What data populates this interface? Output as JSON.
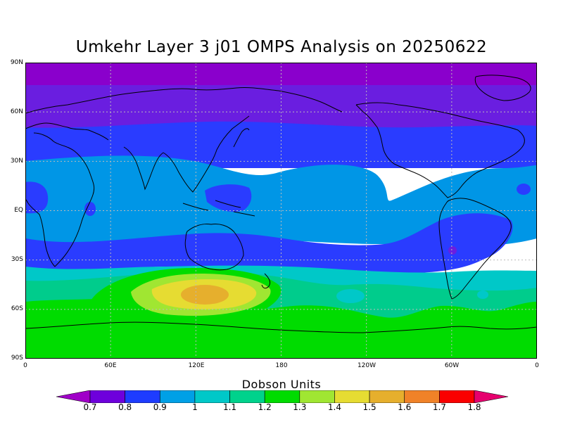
{
  "title": "Umkehr Layer 3 j01 OMPS Analysis on 20250622",
  "map": {
    "lat_ticks": [
      "90N",
      "60N",
      "30N",
      "EQ",
      "30S",
      "60S",
      "90S"
    ],
    "lon_ticks": [
      "0",
      "60E",
      "120E",
      "180",
      "120W",
      "60W",
      "0"
    ],
    "grid": "dotted"
  },
  "colorbar": {
    "title": "Dobson Units",
    "levels": [
      "0.7",
      "0.8",
      "0.9",
      "1",
      "1.1",
      "1.2",
      "1.3",
      "1.4",
      "1.5",
      "1.6",
      "1.7",
      "1.8"
    ],
    "colors": [
      "#a000c8",
      "#6e00dc",
      "#1e3cff",
      "#00a0e6",
      "#00c8c8",
      "#00d28c",
      "#00dc00",
      "#a0e632",
      "#e6dc32",
      "#e6af2d",
      "#f08228",
      "#fa0000",
      "#e6006e"
    ]
  },
  "field_colors": {
    "purple": "#8a00cc",
    "violet": "#6a1ee0",
    "blue": "#2a3cff",
    "sky": "#0096e6",
    "cyan": "#00c8c8",
    "teal": "#00cc8c",
    "green": "#00dc00",
    "lime": "#a0e632",
    "yellow": "#e6dc32",
    "orange": "#e6af2d"
  }
}
